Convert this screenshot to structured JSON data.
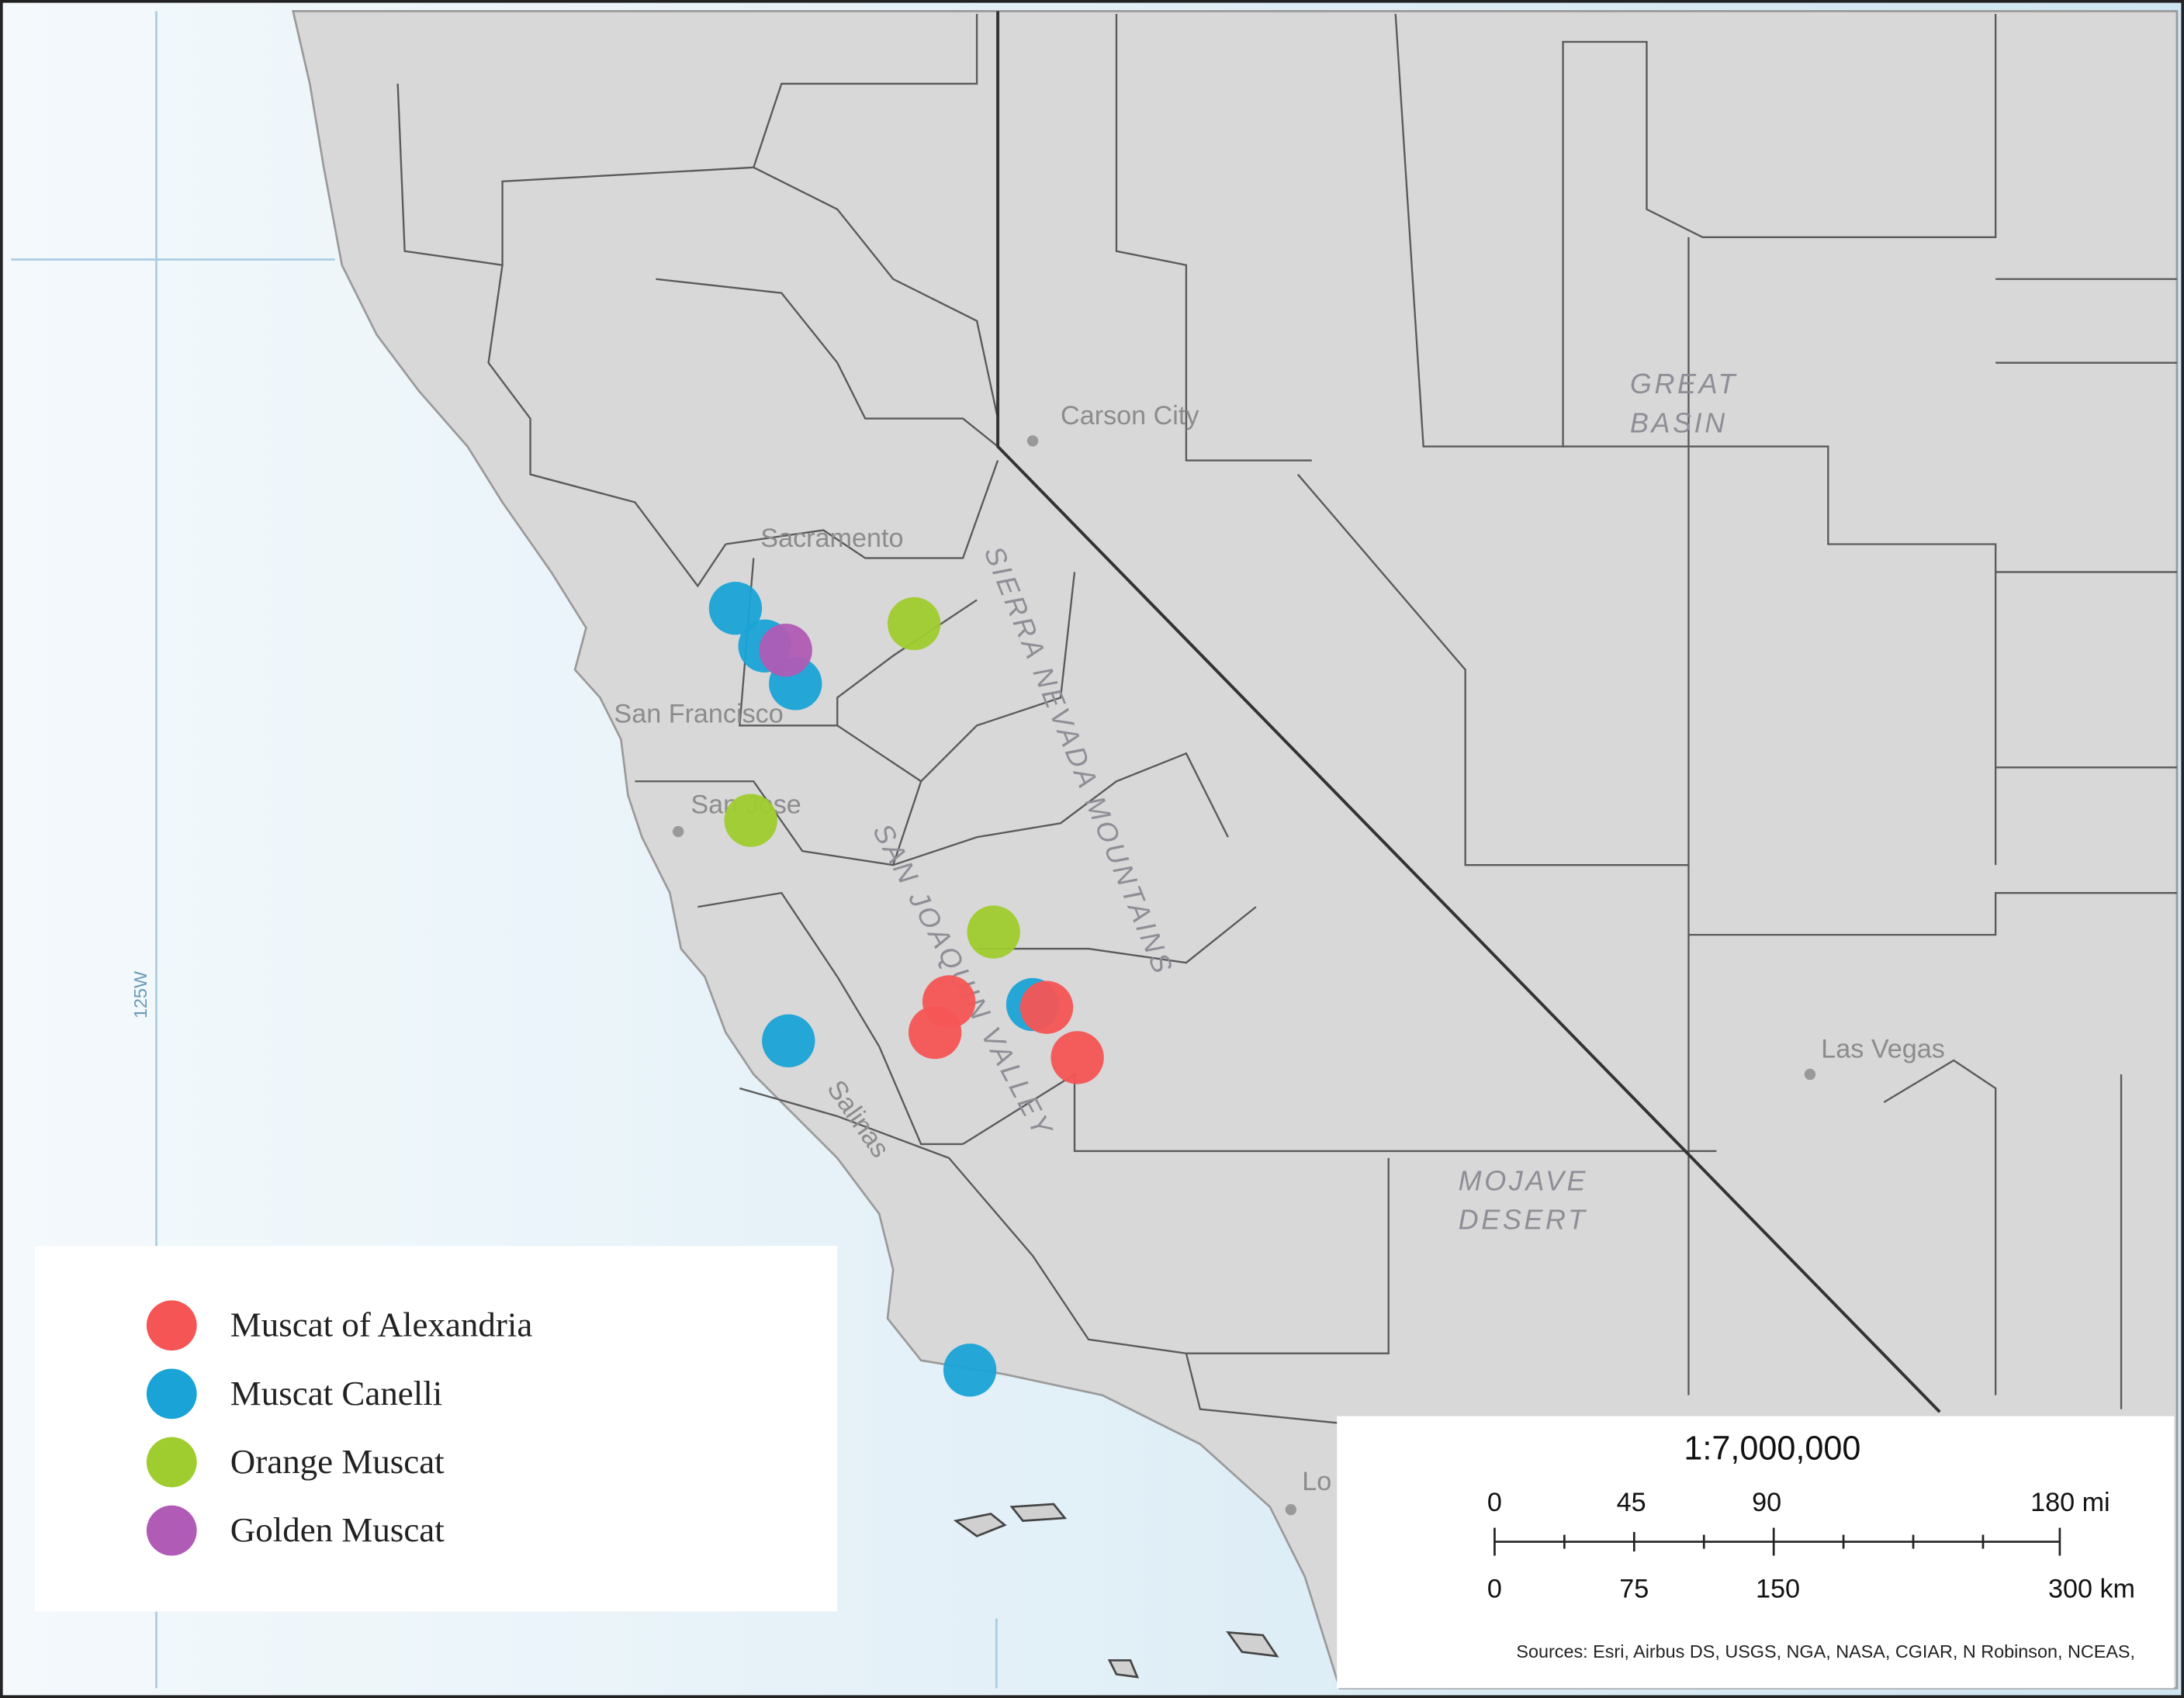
{
  "map": {
    "labels": [
      "Carson City",
      "GREAT",
      "BASIN",
      "Sacramento",
      "San Francisco",
      "San Jose",
      "SIERRA NEVADA MOUNTAINS",
      "SAN JOAQUIN VALLEY",
      "Salinas",
      "Las Vegas",
      "MOJAVE",
      "DESERT",
      "Lo",
      "125W"
    ],
    "legend": {
      "items": [
        {
          "label": "Muscat of Alexandria",
          "color": "#f55555"
        },
        {
          "label": "Muscat Canelli",
          "color": "#1aa3d6"
        },
        {
          "label": "Orange Muscat",
          "color": "#9fcc2e"
        },
        {
          "label": "Golden Muscat",
          "color": "#b05bb5"
        }
      ]
    },
    "scale": {
      "ratio": "1:7,000,000",
      "miles": [
        "0",
        "45",
        "90",
        "180 mi"
      ],
      "kilometers": [
        "0",
        "75",
        "150",
        "300 km"
      ]
    },
    "sources": "Sources: Esri, Airbus DS, USGS, NGA, NASA, CGIAR, N Robinson, NCEAS,"
  }
}
